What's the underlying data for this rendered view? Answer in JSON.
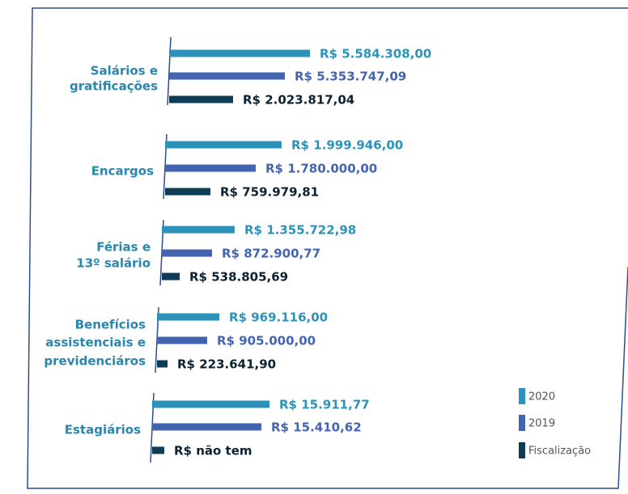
{
  "legend": [
    "2020",
    "2019",
    "Fiscalização"
  ],
  "colors": [
    "#2b92b9",
    "#4364ae",
    "#0e3b56"
  ],
  "groups": [
    {
      "label": [
        "Salários e",
        "gratificações"
      ],
      "values": [
        "R$ 5.584.308,00",
        "R$ 5.353.747,09",
        "R$ 2.023.817,04"
      ]
    },
    {
      "label": [
        "Encargos"
      ],
      "values": [
        "R$ 1.999.946,00",
        "R$ 1.780.000,00",
        "R$ 759.979,81"
      ]
    },
    {
      "label": [
        "Férias e",
        "13º salário"
      ],
      "values": [
        "R$ 1.355.722,98",
        "R$ 872.900,77",
        "R$ 538.805,69"
      ]
    },
    {
      "label": [
        "Benefícios",
        "assistenciais e",
        "previdenciáros"
      ],
      "values": [
        "R$ 969.116,00",
        "R$ 905.000,00",
        "R$ 223.641,90"
      ]
    },
    {
      "label": [
        "Estagiários"
      ],
      "values": [
        "R$ 15.911,77",
        "R$ 15.410,62",
        "R$ não tem"
      ]
    }
  ]
}
